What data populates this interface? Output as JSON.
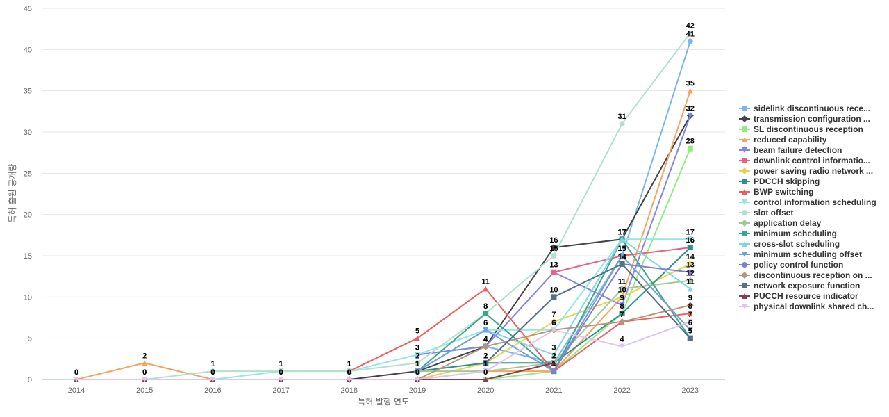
{
  "chart_data": {
    "type": "line",
    "title": "",
    "xlabel": "특허 발행 연도",
    "ylabel": "특허 출원 공개량",
    "x": [
      "2014",
      "2015",
      "2016",
      "2017",
      "2018",
      "2019",
      "2020",
      "2021",
      "2022",
      "2023"
    ],
    "ylim": [
      0,
      45
    ],
    "yticks": [
      0,
      5,
      10,
      15,
      20,
      25,
      30,
      35,
      40,
      45
    ],
    "grid": true,
    "legend_position": "right",
    "series": [
      {
        "name": "sidelink discontinuous rece...",
        "color": "#7cb5ec",
        "marker": "circle",
        "values": [
          null,
          null,
          null,
          null,
          null,
          3,
          4,
          2,
          15,
          41
        ]
      },
      {
        "name": "transmission configuration ...",
        "color": "#434348",
        "marker": "diamond",
        "values": [
          null,
          null,
          null,
          null,
          0,
          1,
          4,
          16,
          17,
          32
        ]
      },
      {
        "name": "SL discontinuous reception",
        "color": "#90ed7d",
        "marker": "square",
        "values": [
          null,
          null,
          null,
          null,
          null,
          0,
          0,
          1,
          8,
          28
        ]
      },
      {
        "name": "reduced capability",
        "color": "#f7a35c",
        "marker": "triangle",
        "values": [
          0,
          2,
          0,
          0,
          0,
          0,
          1,
          1,
          10,
          35
        ]
      },
      {
        "name": "beam failure detection",
        "color": "#8085e9",
        "marker": "triangle-down",
        "values": [
          null,
          null,
          null,
          null,
          null,
          3,
          4,
          13,
          9,
          32
        ]
      },
      {
        "name": "downlink control informatio...",
        "color": "#f15c80",
        "marker": "circle",
        "values": [
          null,
          null,
          null,
          null,
          null,
          null,
          null,
          13,
          15,
          16
        ]
      },
      {
        "name": "power saving radio network ...",
        "color": "#e4d354",
        "marker": "diamond",
        "values": [
          null,
          null,
          null,
          null,
          null,
          0,
          2,
          7,
          10,
          14
        ]
      },
      {
        "name": "PDCCH skipping",
        "color": "#2b908f",
        "marker": "square",
        "values": [
          null,
          null,
          null,
          null,
          null,
          1,
          2,
          2,
          8,
          16
        ]
      },
      {
        "name": "BWP switching",
        "color": "#f45b5b",
        "marker": "triangle",
        "values": [
          null,
          null,
          null,
          null,
          1,
          5,
          11,
          1,
          7,
          8
        ]
      },
      {
        "name": "control information scheduling",
        "color": "#91e8e1",
        "marker": "triangle-down",
        "values": [
          null,
          null,
          0,
          1,
          1,
          3,
          6,
          6,
          17,
          17
        ]
      },
      {
        "name": "slot offset",
        "color": "#b2dfd0",
        "marker": "circle",
        "values": [
          null,
          0,
          1,
          1,
          1,
          2,
          8,
          15,
          31,
          42
        ]
      },
      {
        "name": "application delay",
        "color": "#a5c796",
        "marker": "diamond",
        "values": [
          null,
          null,
          null,
          null,
          null,
          1,
          1,
          2,
          11,
          12
        ]
      },
      {
        "name": "minimum scheduling",
        "color": "#3aa68e",
        "marker": "square",
        "values": [
          null,
          null,
          null,
          null,
          null,
          1,
          8,
          1,
          17,
          5
        ]
      },
      {
        "name": "cross-slot scheduling",
        "color": "#7fd6e2",
        "marker": "triangle",
        "values": [
          null,
          null,
          null,
          null,
          null,
          1,
          6,
          3,
          17,
          11
        ]
      },
      {
        "name": "minimum scheduling offset",
        "color": "#6e9fd9",
        "marker": "triangle-down",
        "values": [
          null,
          null,
          null,
          null,
          null,
          1,
          6,
          1,
          15,
          6
        ]
      },
      {
        "name": "policy control function",
        "color": "#7e7fd1",
        "marker": "circle",
        "values": [
          null,
          null,
          null,
          null,
          null,
          null,
          null,
          1,
          14,
          13
        ]
      },
      {
        "name": "discontinuous reception on ...",
        "color": "#b5947c",
        "marker": "diamond",
        "values": [
          null,
          null,
          null,
          null,
          null,
          0,
          4,
          6,
          7,
          9
        ]
      },
      {
        "name": "network exposure function",
        "color": "#52708a",
        "marker": "square",
        "values": [
          null,
          null,
          null,
          null,
          null,
          null,
          2,
          10,
          14,
          5
        ]
      },
      {
        "name": "PUCCH resource indicator",
        "color": "#8a3a52",
        "marker": "triangle",
        "values": [
          0,
          0,
          0,
          0,
          0,
          0,
          0,
          2,
          null,
          null
        ]
      },
      {
        "name": "physical downlink shared ch...",
        "color": "#dcc6ec",
        "marker": "triangle-down",
        "values": [
          0,
          0,
          0,
          0,
          0,
          0,
          1,
          6,
          4,
          7
        ]
      }
    ]
  }
}
